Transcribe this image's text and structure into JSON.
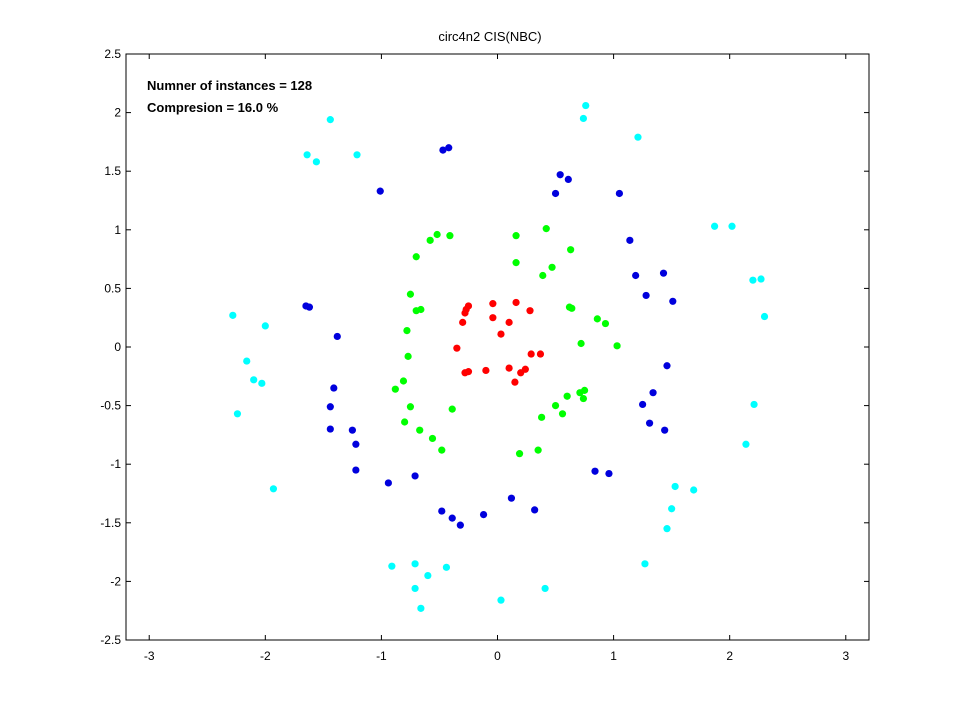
{
  "chart_data": {
    "type": "scatter",
    "title": "circ4n2 CIS(NBC)",
    "xlabel": "",
    "ylabel": "",
    "xlim": [
      -3.2,
      3.2
    ],
    "ylim": [
      -2.5,
      2.5
    ],
    "xticks": [
      -3,
      -2,
      -1,
      0,
      1,
      2,
      3
    ],
    "yticks": [
      -2.5,
      -2,
      -1.5,
      -1,
      -0.5,
      0,
      0.5,
      1,
      1.5,
      2,
      2.5
    ],
    "grid": false,
    "annotations": [
      "Numner of instances = 128",
      "Compresion = 16.0 %"
    ],
    "series": [
      {
        "color": "#ff0000",
        "points": [
          [
            -0.25,
            0.35
          ],
          [
            -0.27,
            0.32
          ],
          [
            -0.28,
            0.29
          ],
          [
            -0.3,
            0.21
          ],
          [
            -0.04,
            0.37
          ],
          [
            0.16,
            0.38
          ],
          [
            0.28,
            0.31
          ],
          [
            -0.04,
            0.25
          ],
          [
            0.1,
            0.21
          ],
          [
            0.03,
            0.11
          ],
          [
            -0.35,
            -0.01
          ],
          [
            0.29,
            -0.06
          ],
          [
            0.37,
            -0.06
          ],
          [
            0.1,
            -0.18
          ],
          [
            0.2,
            -0.22
          ],
          [
            0.24,
            -0.19
          ],
          [
            0.15,
            -0.3
          ],
          [
            -0.1,
            -0.2
          ],
          [
            -0.25,
            -0.21
          ],
          [
            -0.28,
            -0.22
          ]
        ]
      },
      {
        "color": "#00ff00",
        "points": [
          [
            -0.41,
            0.95
          ],
          [
            -0.52,
            0.96
          ],
          [
            -0.58,
            0.91
          ],
          [
            -0.7,
            0.77
          ],
          [
            0.16,
            0.95
          ],
          [
            0.42,
            1.01
          ],
          [
            0.16,
            0.72
          ],
          [
            0.47,
            0.68
          ],
          [
            0.63,
            0.83
          ],
          [
            0.39,
            0.61
          ],
          [
            -0.75,
            0.45
          ],
          [
            -0.66,
            0.32
          ],
          [
            -0.7,
            0.31
          ],
          [
            -0.78,
            0.14
          ],
          [
            0.62,
            0.34
          ],
          [
            0.64,
            0.33
          ],
          [
            0.86,
            0.24
          ],
          [
            0.93,
            0.2
          ],
          [
            1.03,
            0.01
          ],
          [
            0.72,
            0.03
          ],
          [
            -0.77,
            -0.08
          ],
          [
            -0.81,
            -0.29
          ],
          [
            -0.88,
            -0.36
          ],
          [
            -0.75,
            -0.51
          ],
          [
            -0.8,
            -0.64
          ],
          [
            0.75,
            -0.37
          ],
          [
            0.71,
            -0.39
          ],
          [
            0.74,
            -0.44
          ],
          [
            0.6,
            -0.42
          ],
          [
            0.5,
            -0.5
          ],
          [
            0.56,
            -0.57
          ],
          [
            0.38,
            -0.6
          ],
          [
            -0.39,
            -0.53
          ],
          [
            -0.67,
            -0.71
          ],
          [
            -0.56,
            -0.78
          ],
          [
            -0.48,
            -0.88
          ],
          [
            0.35,
            -0.88
          ],
          [
            0.19,
            -0.91
          ]
        ]
      },
      {
        "color": "#0000dd",
        "points": [
          [
            -0.42,
            1.7
          ],
          [
            -0.47,
            1.68
          ],
          [
            -1.01,
            1.33
          ],
          [
            0.54,
            1.47
          ],
          [
            0.61,
            1.43
          ],
          [
            0.5,
            1.31
          ],
          [
            1.05,
            1.31
          ],
          [
            1.14,
            0.91
          ],
          [
            1.19,
            0.61
          ],
          [
            1.43,
            0.63
          ],
          [
            1.28,
            0.44
          ],
          [
            1.51,
            0.39
          ],
          [
            -1.65,
            0.35
          ],
          [
            -1.62,
            0.34
          ],
          [
            -1.38,
            0.09
          ],
          [
            1.46,
            -0.16
          ],
          [
            -1.41,
            -0.35
          ],
          [
            1.34,
            -0.39
          ],
          [
            -1.44,
            -0.51
          ],
          [
            1.25,
            -0.49
          ],
          [
            -1.44,
            -0.7
          ],
          [
            -1.25,
            -0.71
          ],
          [
            1.31,
            -0.65
          ],
          [
            1.44,
            -0.71
          ],
          [
            -1.22,
            -0.83
          ],
          [
            -1.22,
            -1.05
          ],
          [
            0.84,
            -1.06
          ],
          [
            0.96,
            -1.08
          ],
          [
            -0.71,
            -1.1
          ],
          [
            -0.94,
            -1.16
          ],
          [
            0.12,
            -1.29
          ],
          [
            -0.48,
            -1.4
          ],
          [
            -0.39,
            -1.46
          ],
          [
            -0.32,
            -1.52
          ],
          [
            -0.12,
            -1.43
          ],
          [
            0.32,
            -1.39
          ]
        ]
      },
      {
        "color": "#00ffff",
        "points": [
          [
            0.76,
            2.06
          ],
          [
            0.74,
            1.95
          ],
          [
            -1.44,
            1.94
          ],
          [
            1.21,
            1.79
          ],
          [
            -1.64,
            1.64
          ],
          [
            -1.21,
            1.64
          ],
          [
            -1.56,
            1.58
          ],
          [
            1.87,
            1.03
          ],
          [
            2.02,
            1.03
          ],
          [
            2.2,
            0.57
          ],
          [
            2.27,
            0.58
          ],
          [
            -2.28,
            0.27
          ],
          [
            2.3,
            0.26
          ],
          [
            -2.0,
            0.18
          ],
          [
            -2.16,
            -0.12
          ],
          [
            -2.1,
            -0.28
          ],
          [
            -2.03,
            -0.31
          ],
          [
            2.21,
            -0.49
          ],
          [
            -2.24,
            -0.57
          ],
          [
            2.14,
            -0.83
          ],
          [
            -1.93,
            -1.21
          ],
          [
            1.53,
            -1.19
          ],
          [
            1.69,
            -1.22
          ],
          [
            1.5,
            -1.38
          ],
          [
            1.46,
            -1.55
          ],
          [
            -0.91,
            -1.87
          ],
          [
            -0.71,
            -1.85
          ],
          [
            -0.44,
            -1.88
          ],
          [
            1.27,
            -1.85
          ],
          [
            -0.6,
            -1.95
          ],
          [
            -0.71,
            -2.06
          ],
          [
            -0.66,
            -2.23
          ],
          [
            0.03,
            -2.16
          ],
          [
            0.41,
            -2.06
          ]
        ]
      }
    ]
  }
}
